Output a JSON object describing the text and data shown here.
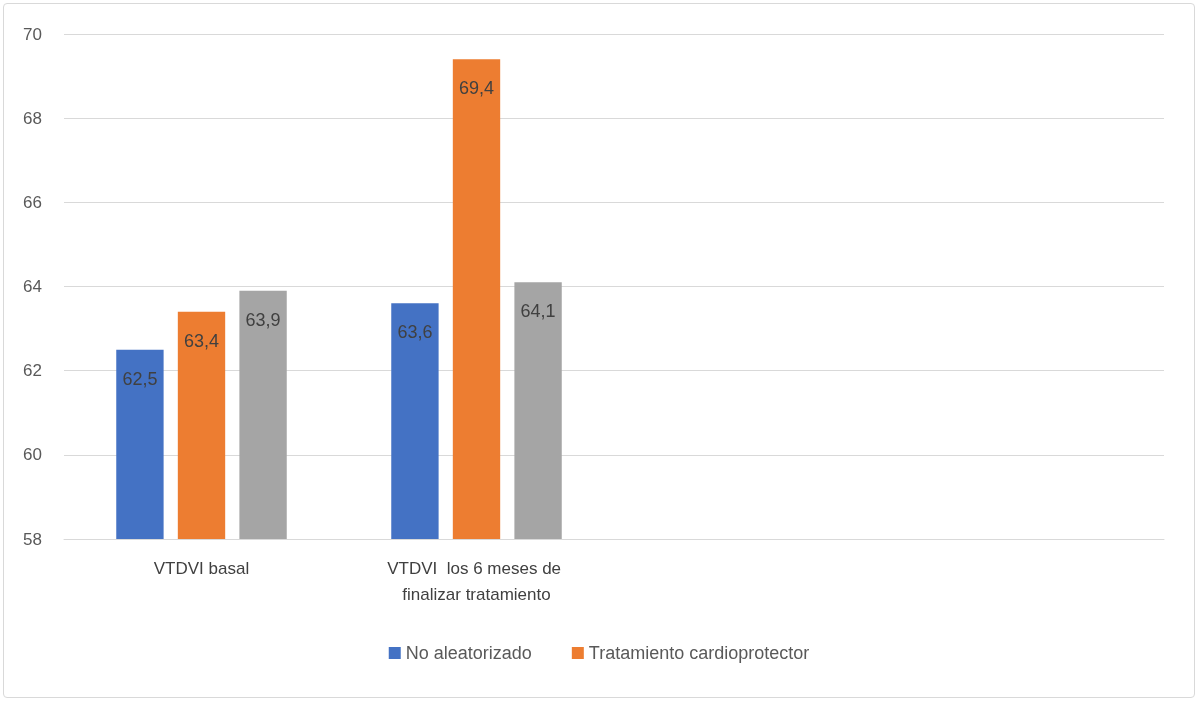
{
  "chart_data": {
    "type": "bar",
    "categories": [
      "VTDVI basal",
      "VTDVI  los 6 meses de finalizar tratamiento",
      null,
      null
    ],
    "series": [
      {
        "name": "No aleatorizado",
        "color": "#4472c4",
        "values": [
          62.5,
          63.6,
          null,
          null
        ],
        "value_labels": [
          "62,5",
          "63,6",
          null,
          null
        ]
      },
      {
        "name": "Tratamiento cardioprotector",
        "color": "#ed7d31",
        "values": [
          63.4,
          69.4,
          null,
          null
        ],
        "value_labels": [
          "63,4",
          "69,4",
          null,
          null
        ]
      },
      {
        "color": "#a5a5a5",
        "values": [
          63.9,
          64.1,
          null,
          null
        ],
        "value_labels": [
          "63,9",
          "64,1",
          null,
          null
        ]
      }
    ],
    "ylim": [
      58,
      70
    ],
    "yticks": [
      58,
      60,
      62,
      64,
      66,
      68,
      70
    ],
    "grid": "y",
    "legend": "bottom"
  }
}
